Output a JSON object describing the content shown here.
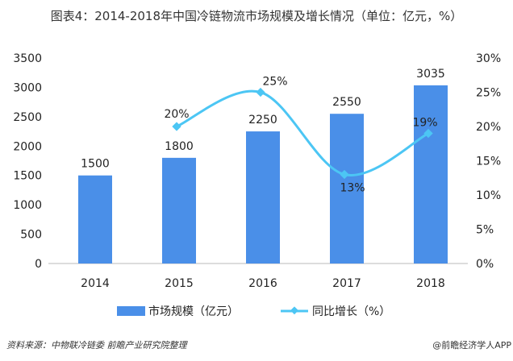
{
  "chart_data": {
    "type": "bar+line",
    "title": "图表4：2014-2018年中国冷链物流市场规模及增长情况（单位：亿元，%）",
    "categories": [
      "2014",
      "2015",
      "2016",
      "2017",
      "2018"
    ],
    "series": [
      {
        "name": "市场规模（亿元）",
        "type": "bar",
        "axis": "left",
        "values": [
          1500,
          1800,
          2250,
          2550,
          3035
        ],
        "labels": [
          "1500",
          "1800",
          "2250",
          "2550",
          "3035"
        ],
        "color": "#4a8fe8"
      },
      {
        "name": "同比增长（%）",
        "type": "line",
        "axis": "right",
        "values": [
          null,
          20,
          25,
          13,
          19
        ],
        "labels": [
          "",
          "20%",
          "25%",
          "13%",
          "19%"
        ],
        "color": "#4cc6f4"
      }
    ],
    "y_left": {
      "ylim": [
        0,
        3500
      ],
      "ticks": [
        "0",
        "500",
        "1000",
        "1500",
        "2000",
        "2500",
        "3000",
        "3500"
      ]
    },
    "y_right": {
      "ylim": [
        0,
        30
      ],
      "ticks": [
        "0%",
        "5%",
        "10%",
        "15%",
        "20%",
        "25%",
        "30%"
      ]
    },
    "grid": false,
    "legend": "bottom"
  },
  "footer": {
    "source": "资料来源：中物联冷链委 前瞻产业研究院整理",
    "credit": "@前瞻经济学人APP"
  }
}
